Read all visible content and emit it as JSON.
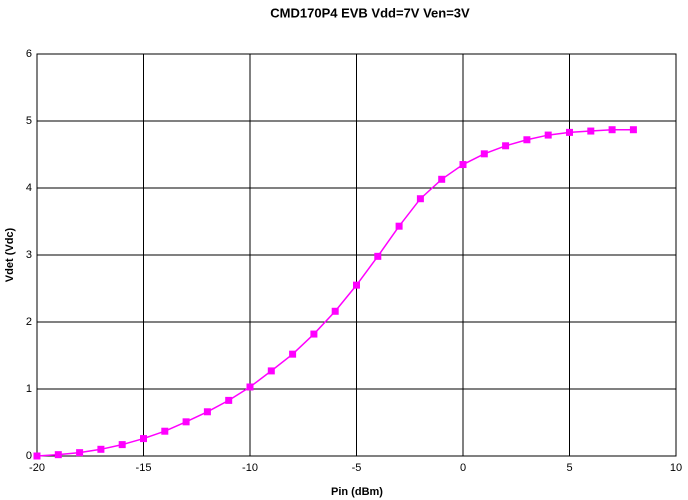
{
  "chart_data": {
    "type": "line",
    "title": "CMD170P4 EVB Vdd=7V Ven=3V",
    "x_label": "Pin (dBm)",
    "y_label": "Vdet (Vdc)",
    "x": [
      -20,
      -19,
      -18,
      -17,
      -16,
      -15,
      -14,
      -13,
      -12,
      -11,
      -10,
      -9,
      -8,
      -7,
      -6,
      -5,
      -4,
      -3,
      -2,
      -1,
      0,
      1,
      2,
      3,
      4,
      5,
      6,
      7,
      8
    ],
    "values": [
      0.0,
      0.02,
      0.05,
      0.1,
      0.17,
      0.26,
      0.37,
      0.51,
      0.66,
      0.83,
      1.03,
      1.27,
      1.52,
      1.82,
      2.16,
      2.55,
      2.98,
      3.43,
      3.84,
      4.13,
      4.35,
      4.51,
      4.63,
      4.72,
      4.79,
      4.83,
      4.85,
      4.87,
      4.87
    ],
    "color": "#ff00ff",
    "xlim": [
      -20,
      10
    ],
    "xticks": [
      -20,
      -15,
      -10,
      -5,
      0,
      5,
      10
    ],
    "ylim": [
      0,
      6
    ],
    "yticks": [
      0,
      1,
      2,
      3,
      4,
      5,
      6
    ],
    "grid": true
  }
}
